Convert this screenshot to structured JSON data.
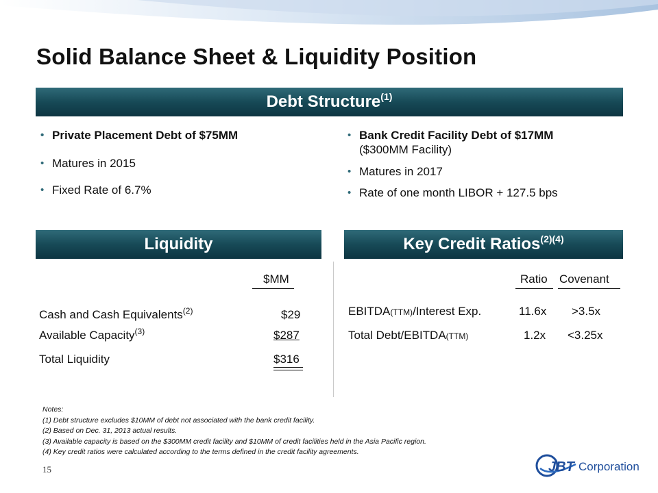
{
  "title": "Solid Balance Sheet & Liquidity Position",
  "debt_structure": {
    "header": "Debt Structure",
    "header_sup": "(1)",
    "left_items": [
      "Private Placement Debt of $75MM",
      "Matures in 2015",
      "Fixed Rate of 6.7%"
    ],
    "right_items": [
      "Bank Credit Facility Debt of $17MM",
      "($300MM Facility)",
      "Matures in 2017",
      "Rate of one month  LIBOR + 127.5 bps"
    ]
  },
  "liquidity": {
    "header": "Liquidity",
    "col_header": "$MM",
    "rows": [
      {
        "label": "Cash and Cash Equivalents",
        "sup": "(2)",
        "value": "$29"
      },
      {
        "label": "Available Capacity",
        "sup": "(3)",
        "value": "$287"
      },
      {
        "label": "Total Liquidity",
        "sup": "",
        "value": "$316"
      }
    ]
  },
  "ratios": {
    "header": "Key Credit Ratios",
    "header_sup": "(2)(4)",
    "col_ratio": "Ratio",
    "col_covenant": "Covenant",
    "rows": [
      {
        "label_pre": "EBITDA",
        "label_sub": "(TTM)",
        "label_post": "/Interest Exp.",
        "ratio": "11.6x",
        "covenant": ">3.5x"
      },
      {
        "label_pre": "Total Debt/EBITDA",
        "label_sub": "(TTM)",
        "label_post": "",
        "ratio": "1.2x",
        "covenant": "<3.25x"
      }
    ]
  },
  "notes": {
    "heading": "Notes:",
    "items": [
      "(1)  Debt structure excludes $10MM  of debt not associated with the bank credit facility.",
      "(2)  Based on Dec. 31, 2013 actual results.",
      "(3)  Available capacity is based on the $300MM  credit facility and $10MM  of credit facilities held in the Asia Pacific region.",
      "(4)  Key credit ratios were  calculated according to the terms defined in the credit facility agreements."
    ]
  },
  "page_number": "15",
  "logo": {
    "brand": "JBT",
    "text": "Corporation",
    "color": "#1f4e9c"
  },
  "colors": {
    "header_bar": "#174a57",
    "swoosh": "#bcd2ea"
  }
}
